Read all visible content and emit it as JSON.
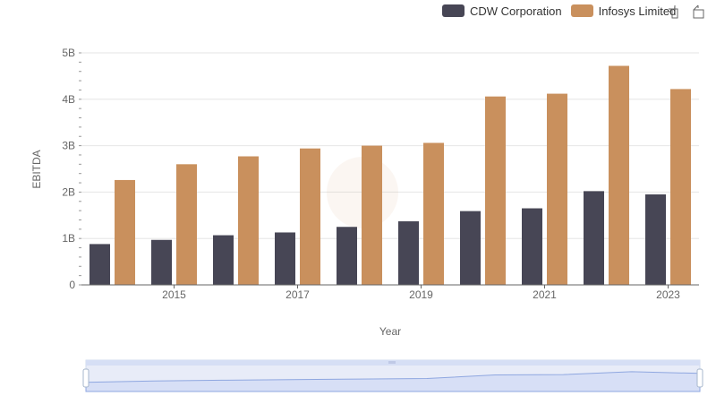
{
  "chart_data": {
    "type": "bar",
    "categories": [
      "2014",
      "2015",
      "2016",
      "2017",
      "2018",
      "2019",
      "2020",
      "2021",
      "2022",
      "2023"
    ],
    "x_tick_labels": [
      "2015",
      "2017",
      "2019",
      "2021",
      "2023"
    ],
    "y_tick_labels": [
      "0",
      "1B",
      "2B",
      "3B",
      "4B",
      "5B"
    ],
    "ylim": [
      0,
      5000000000
    ],
    "xlabel": "Year",
    "ylabel": "EBITDA",
    "series": [
      {
        "name": "CDW Corporation",
        "color": "#474655",
        "values": [
          880000000,
          970000000,
          1070000000,
          1130000000,
          1250000000,
          1370000000,
          1590000000,
          1650000000,
          2020000000,
          1950000000
        ]
      },
      {
        "name": "Infosys Limited",
        "color": "#c9905d",
        "values": [
          2260000000,
          2600000000,
          2770000000,
          2940000000,
          3000000000,
          3060000000,
          4060000000,
          4120000000,
          4720000000,
          4220000000
        ]
      }
    ],
    "legend_position": "top-right",
    "grid": true
  },
  "toolbox": {
    "zoom_icon": "zoom-icon",
    "restore_icon": "restore-icon"
  },
  "datazoom": {
    "handle_icon": "drag-handle-icon"
  }
}
